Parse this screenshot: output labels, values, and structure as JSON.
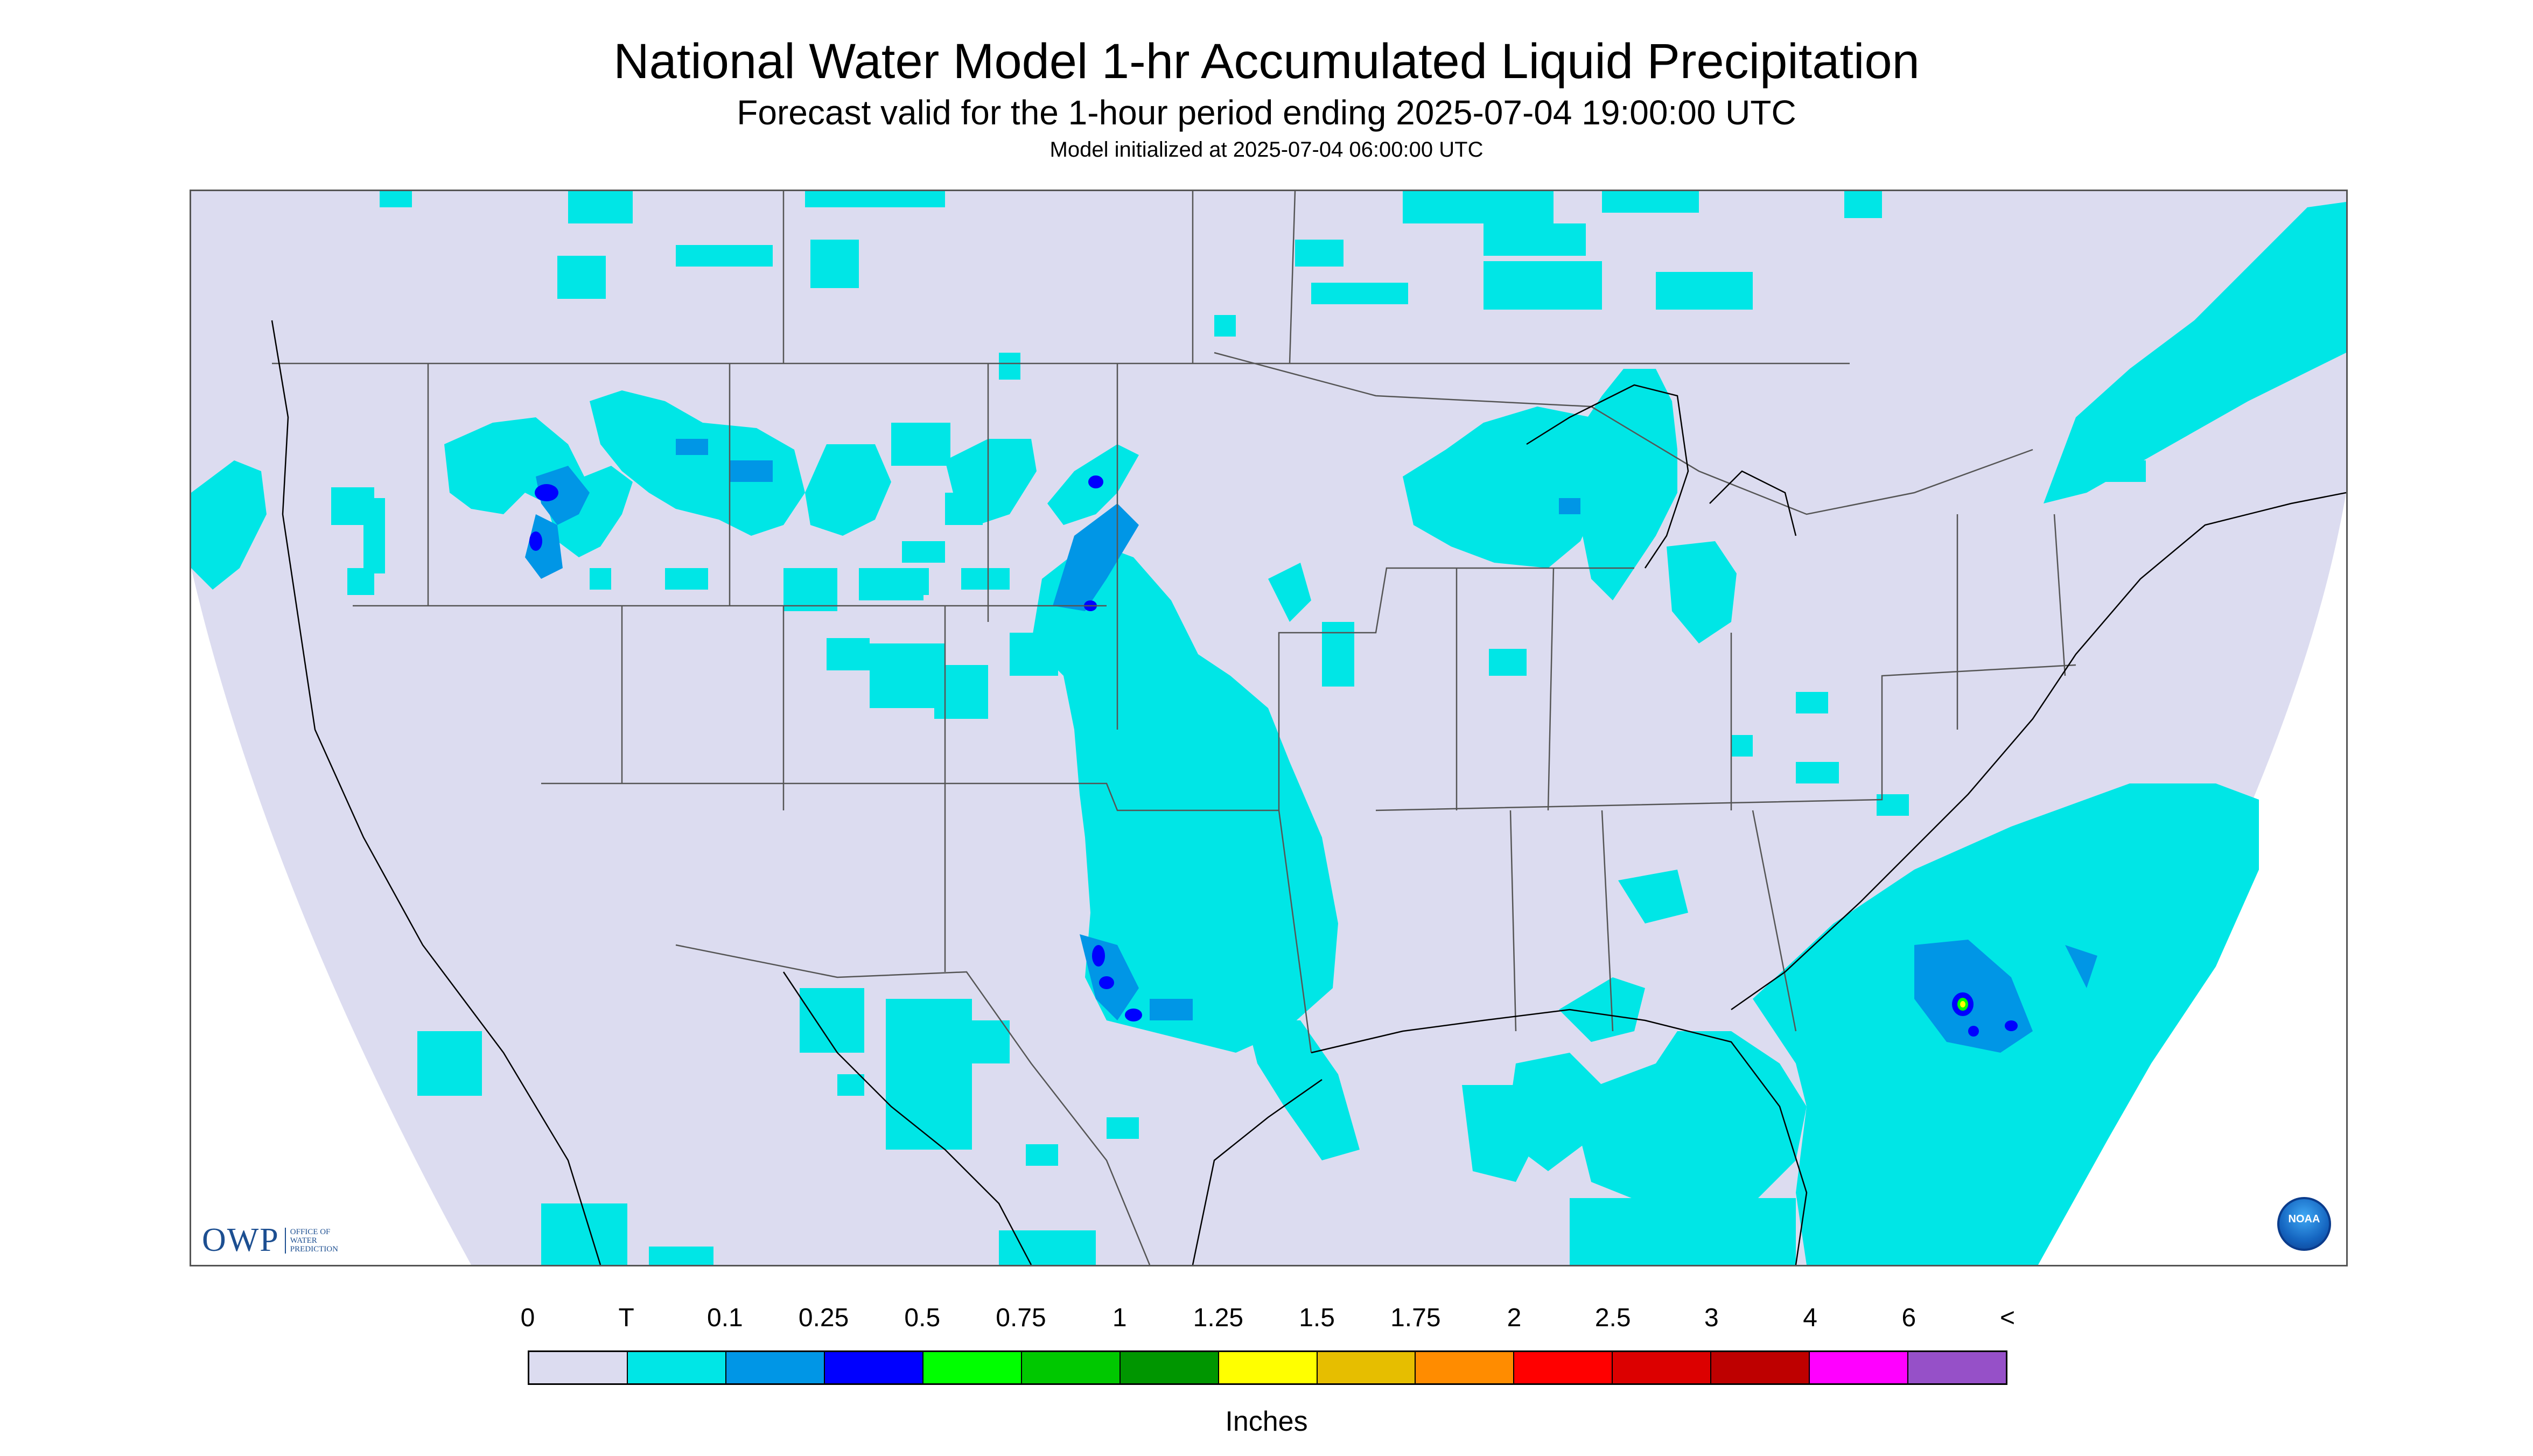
{
  "title": "National Water Model 1-hr Accumulated Liquid Precipitation",
  "subtitle": "Forecast valid for the 1-hour period ending 2025-07-04 19:00:00 UTC",
  "init_line": "Model initialized at 2025-07-04 06:00:00 UTC",
  "logos": {
    "owp_mark": "OWP",
    "owp_text": "OFFICE OF WATER PREDICTION",
    "noaa_text": "NOAA"
  },
  "legend": {
    "labels": [
      "0",
      "T",
      "0.1",
      "0.25",
      "0.5",
      "0.75",
      "1",
      "1.25",
      "1.5",
      "1.75",
      "2",
      "2.5",
      "3",
      "4",
      "6",
      "<"
    ],
    "colors": [
      "#dcdcf0",
      "#00e6e6",
      "#0096e6",
      "#0000ff",
      "#00ff00",
      "#00c800",
      "#009600",
      "#ffff00",
      "#e6be00",
      "#ff8c00",
      "#ff0000",
      "#dc0000",
      "#be0000",
      "#ff00ff",
      "#9650c8"
    ],
    "units": "Inches"
  },
  "colors": {
    "background_domain": "#dcdcf0",
    "trace": "#00e6e6",
    "light": "#0096e6",
    "moderate": "#0000ff",
    "heavy_green": "#00ff00",
    "heavy_yellow": "#ffff00",
    "border_lines": "#555555"
  }
}
